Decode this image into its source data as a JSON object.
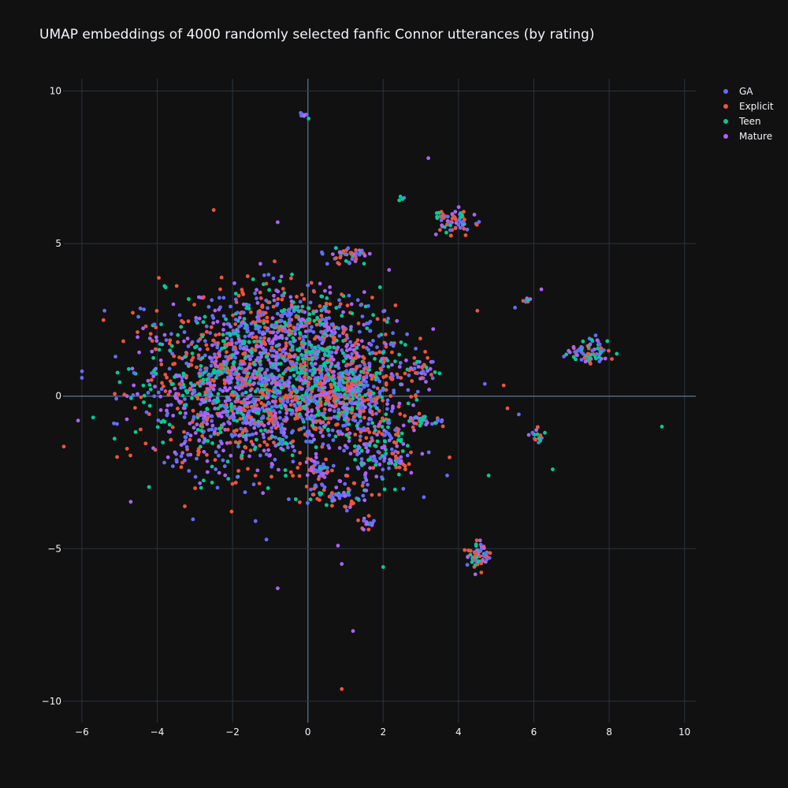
{
  "chart_data": {
    "type": "scatter",
    "title": "UMAP embeddings of 4000 randomly selected fanfic Connor utterances (by rating)",
    "xlabel": "",
    "ylabel": "",
    "xlim": [
      -6.5,
      10.3
    ],
    "ylim": [
      -10.7,
      10.4
    ],
    "x_ticks": [
      -6,
      -4,
      -2,
      0,
      2,
      4,
      6,
      8,
      10
    ],
    "y_ticks": [
      -10,
      -5,
      0,
      5,
      10
    ],
    "grid": true,
    "legend_position": "top-right",
    "background": "#111111",
    "grid_color": "#283442",
    "zeroline_color": "#506784",
    "total_points": 4000,
    "series": [
      {
        "name": "GA",
        "color": "#636efa"
      },
      {
        "name": "Explicit",
        "color": "#EF553B"
      },
      {
        "name": "Teen",
        "color": "#00cc96"
      },
      {
        "name": "Mature",
        "color": "#ab63fa"
      }
    ],
    "clusters": [
      {
        "center": [
          -1.5,
          0.3
        ],
        "spread": [
          1.5,
          1.3
        ],
        "share": 0.42
      },
      {
        "center": [
          0.9,
          0.5
        ],
        "spread": [
          0.9,
          1.1
        ],
        "share": 0.14
      },
      {
        "center": [
          -0.6,
          2.6
        ],
        "spread": [
          1.0,
          0.7
        ],
        "share": 0.06
      },
      {
        "center": [
          1.2,
          -0.1
        ],
        "spread": [
          0.35,
          0.6
        ],
        "share": 0.03
      },
      {
        "center": [
          1.8,
          -1.8
        ],
        "spread": [
          0.5,
          0.5
        ],
        "share": 0.03
      },
      {
        "center": [
          0.8,
          -3.3
        ],
        "spread": [
          0.4,
          0.2
        ],
        "share": 0.015
      },
      {
        "center": [
          0.4,
          -2.5
        ],
        "spread": [
          0.2,
          0.25
        ],
        "share": 0.01
      },
      {
        "center": [
          1.1,
          4.6
        ],
        "spread": [
          0.3,
          0.15
        ],
        "share": 0.012
      },
      {
        "center": [
          3.9,
          5.7
        ],
        "spread": [
          0.3,
          0.2
        ],
        "share": 0.015
      },
      {
        "center": [
          7.5,
          1.5
        ],
        "spread": [
          0.25,
          0.2
        ],
        "share": 0.018
      },
      {
        "center": [
          4.5,
          -5.2
        ],
        "spread": [
          0.15,
          0.25
        ],
        "share": 0.015
      },
      {
        "center": [
          3.1,
          0.9
        ],
        "spread": [
          0.2,
          0.2
        ],
        "share": 0.008
      },
      {
        "center": [
          3.1,
          -0.8
        ],
        "spread": [
          0.25,
          0.1
        ],
        "share": 0.008
      },
      {
        "center": [
          6.1,
          -1.3
        ],
        "spread": [
          0.08,
          0.15
        ],
        "share": 0.004
      },
      {
        "center": [
          1.6,
          -4.2
        ],
        "spread": [
          0.1,
          0.12
        ],
        "share": 0.004
      },
      {
        "center": [
          2.4,
          -2.1
        ],
        "spread": [
          0.15,
          0.2
        ],
        "share": 0.005
      },
      {
        "center": [
          -0.1,
          9.2
        ],
        "spread": [
          0.05,
          0.05
        ],
        "share": 0.002
      },
      {
        "center": [
          5.9,
          3.15
        ],
        "spread": [
          0.08,
          0.05
        ],
        "share": 0.002
      },
      {
        "center": [
          2.5,
          6.5
        ],
        "spread": [
          0.04,
          0.04
        ],
        "share": 0.001
      }
    ],
    "outliers": [
      [
        -6.1,
        -0.8
      ],
      [
        -5.7,
        -0.7
      ],
      [
        -6.0,
        0.6
      ],
      [
        -5.4,
        2.8
      ],
      [
        -2.5,
        6.1
      ],
      [
        -0.8,
        5.7
      ],
      [
        3.2,
        7.8
      ],
      [
        9.4,
        -1.0
      ],
      [
        -1.1,
        -4.7
      ],
      [
        -0.8,
        -6.3
      ],
      [
        1.2,
        -7.7
      ],
      [
        0.9,
        -9.6
      ],
      [
        2.0,
        -5.6
      ],
      [
        0.9,
        -5.5
      ],
      [
        0.8,
        -4.9
      ],
      [
        4.7,
        0.4
      ],
      [
        5.2,
        0.35
      ],
      [
        5.5,
        2.9
      ],
      [
        6.5,
        -2.4
      ],
      [
        6.8,
        1.3
      ],
      [
        6.2,
        3.5
      ],
      [
        -4.5,
        2.6
      ],
      [
        -4.9,
        1.8
      ],
      [
        -4.8,
        0.0
      ],
      [
        3.4,
        5.3
      ],
      [
        4.5,
        2.8
      ],
      [
        5.3,
        -0.4
      ],
      [
        5.6,
        -0.6
      ],
      [
        4.8,
        -2.6
      ],
      [
        3.7,
        -2.6
      ],
      [
        -2.4,
        -3.0
      ]
    ]
  }
}
